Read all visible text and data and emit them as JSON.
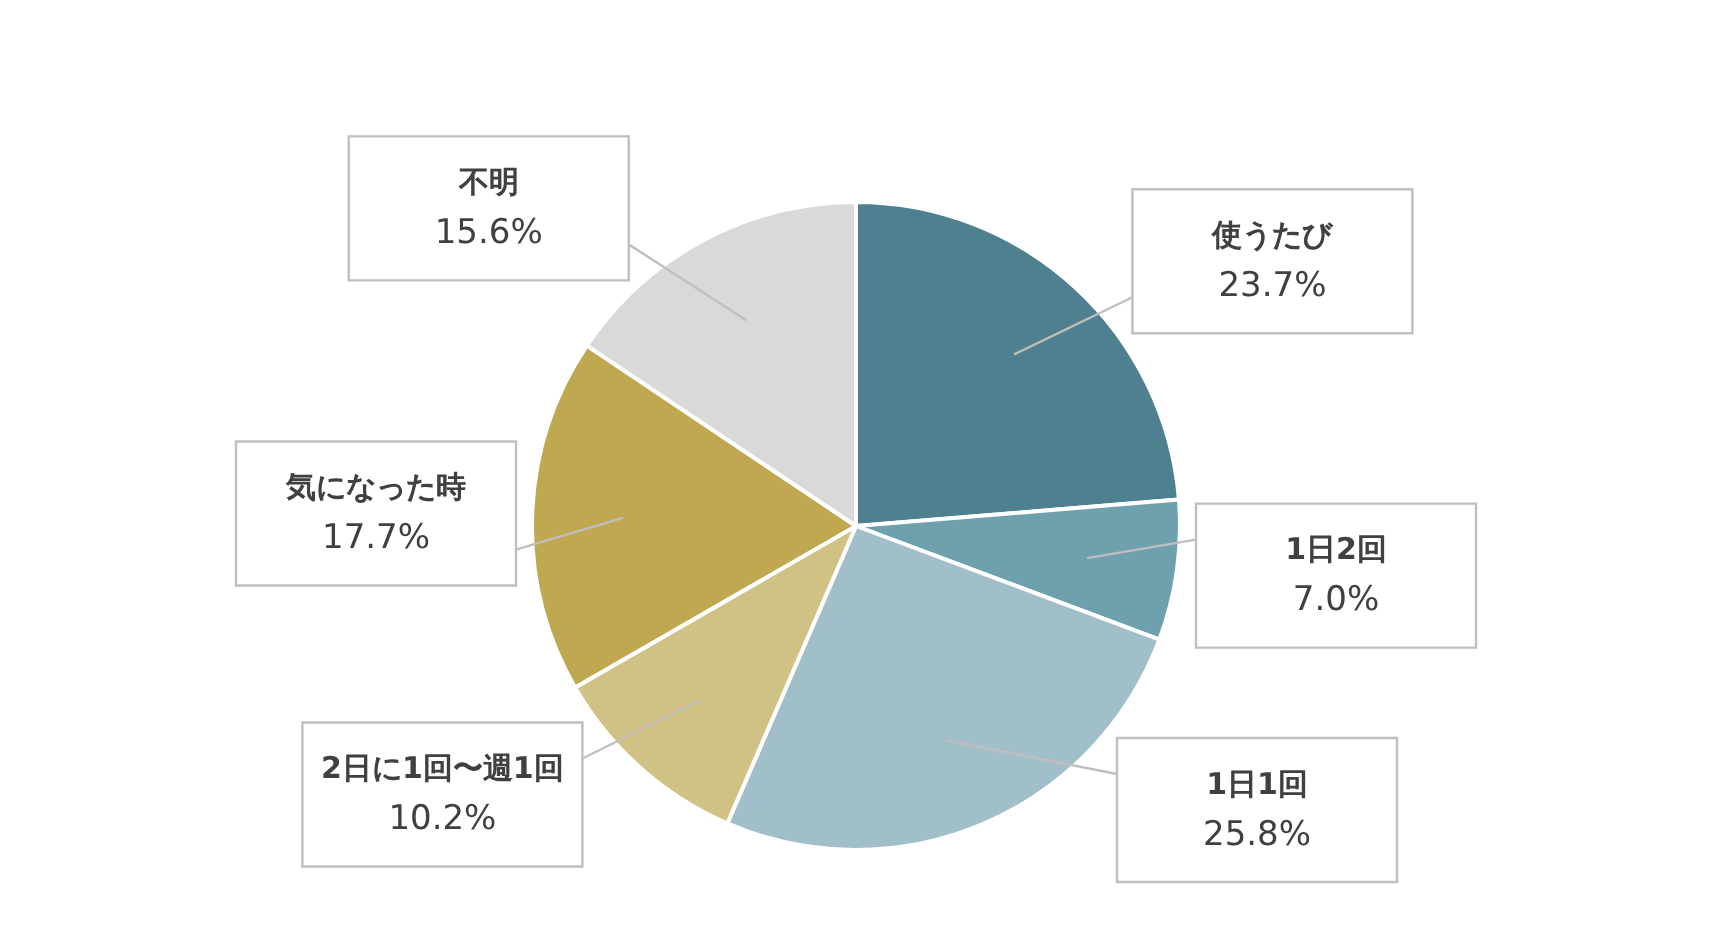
{
  "chart_data": {
    "type": "pie",
    "categories": [
      "使うたび",
      "1日2回",
      "1日1回",
      "2日に1回〜週1回",
      "気になった時",
      "不明"
    ],
    "values": [
      23.7,
      7.0,
      25.8,
      10.2,
      17.7,
      15.6
    ],
    "value_labels": [
      "23.7%",
      "7.0%",
      "25.8%",
      "10.2%",
      "17.7%",
      "15.6%"
    ],
    "colors": [
      "#4f8090",
      "#6fa0ae",
      "#a0bfc8",
      "#d0c285",
      "#bfa850",
      "#d9d9d9"
    ],
    "legend": false
  }
}
